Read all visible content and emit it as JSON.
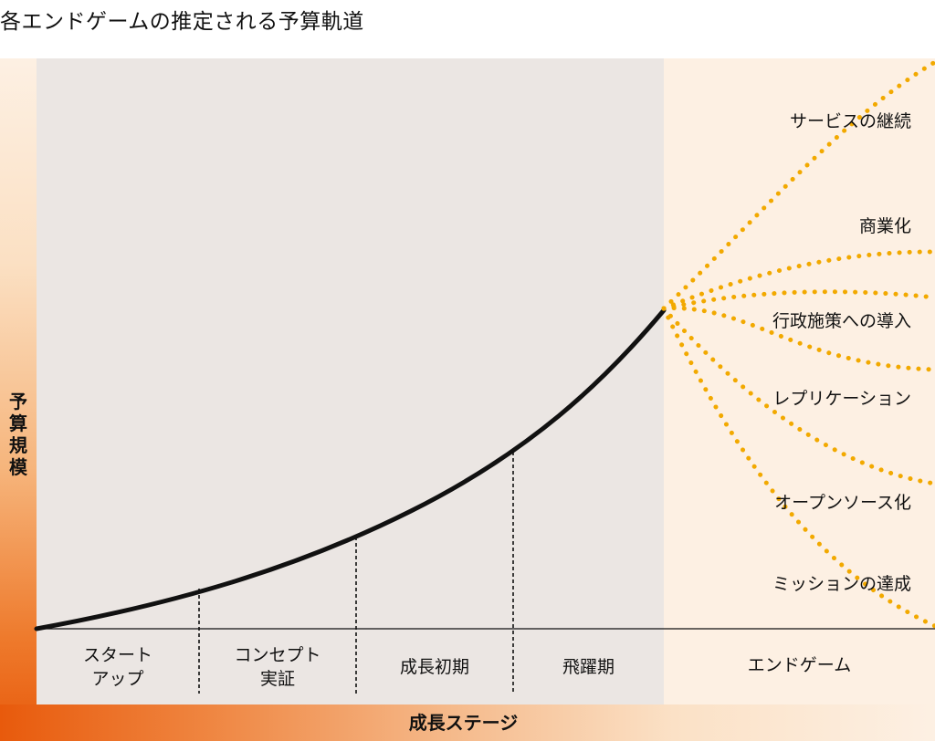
{
  "title": "各エンドゲームの推定される予算軌道",
  "y_axis_label": "予算規模",
  "x_axis_label": "成長ステージ",
  "stages": [
    {
      "line1": "スタート",
      "line2": "アップ"
    },
    {
      "line1": "コンセプト",
      "line2": "実証"
    },
    {
      "line1": "成長初期",
      "line2": ""
    },
    {
      "line1": "飛躍期",
      "line2": ""
    },
    {
      "line1": "エンドゲーム",
      "line2": ""
    }
  ],
  "endgames": [
    "サービスの継続",
    "商業化",
    "行政施策への導入",
    "レプリケーション",
    "オープンソース化",
    "ミッションの達成"
  ],
  "colors": {
    "curve": "#111111",
    "dotted": "#f2a900",
    "gray_panel": "#ebe6e3",
    "end_panel": "#fdf0e3",
    "gradient_dark": "#e85a0c",
    "gradient_light": "#fdf0e3"
  }
}
